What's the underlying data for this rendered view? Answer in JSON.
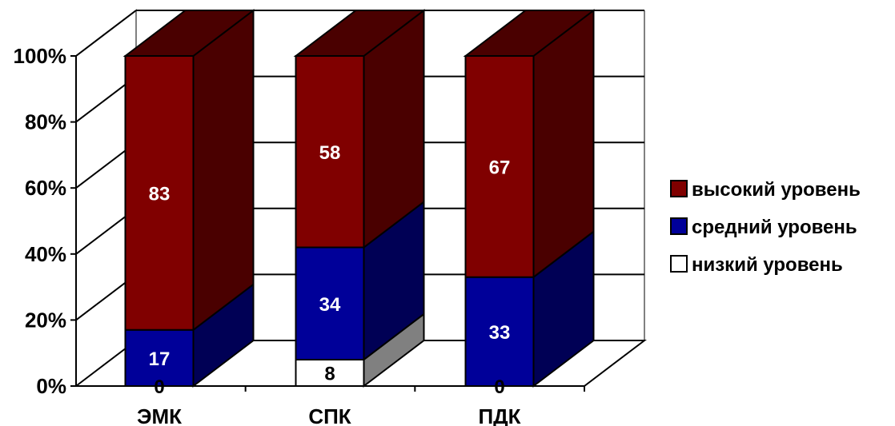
{
  "chart_data": {
    "type": "bar",
    "stacked": true,
    "three_d": true,
    "categories": [
      "ЭМК",
      "СПК",
      "ПДК"
    ],
    "series": [
      {
        "name": "низкий уровень",
        "values": [
          0,
          8,
          0
        ],
        "color": "#ffffff",
        "side_color": "#808080",
        "label_color": "#000000"
      },
      {
        "name": "средний уровень",
        "values": [
          17,
          34,
          33
        ],
        "color": "#000099",
        "side_color": "#000055",
        "label_color": "#ffffff"
      },
      {
        "name": "высокий уровень",
        "values": [
          83,
          58,
          67
        ],
        "color": "#800000",
        "side_color": "#4a0000",
        "label_color": "#ffffff"
      }
    ],
    "y_ticks": [
      "0%",
      "20%",
      "40%",
      "60%",
      "80%",
      "100%"
    ],
    "ylim": [
      0,
      100
    ],
    "grid": true,
    "legend_position": "right",
    "legend_order": [
      "высокий уровень",
      "средний уровень",
      "низкий уровень"
    ]
  }
}
